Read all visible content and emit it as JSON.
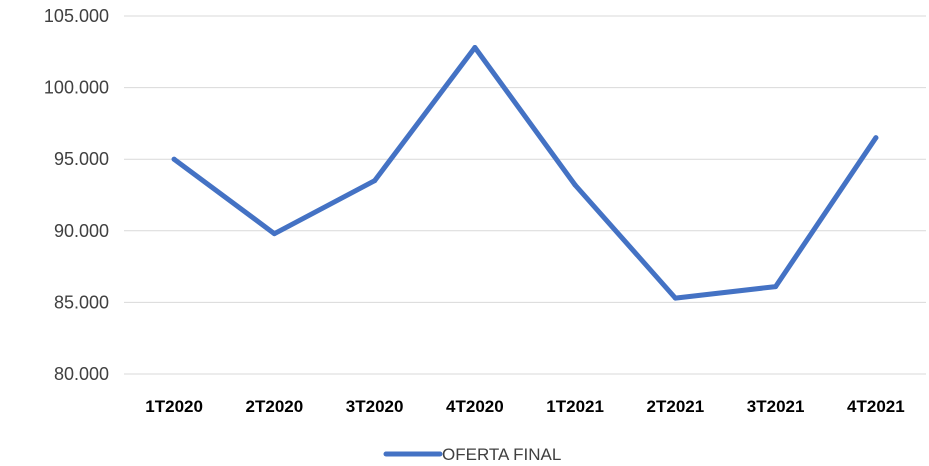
{
  "chart_data": {
    "type": "line",
    "title": "",
    "xlabel": "",
    "ylabel": "",
    "categories": [
      "1T2020",
      "2T2020",
      "3T2020",
      "4T2020",
      "1T2021",
      "2T2021",
      "3T2021",
      "4T2021"
    ],
    "series": [
      {
        "name": "OFERTA FINAL",
        "color": "#4472C4",
        "values": [
          95000,
          89800,
          93500,
          102800,
          93200,
          85300,
          86100,
          96500
        ]
      }
    ],
    "ylim": [
      80000,
      105000
    ],
    "yticks": [
      80000,
      85000,
      90000,
      95000,
      100000,
      105000
    ],
    "ytick_labels": [
      "80.000",
      "85.000",
      "90.000",
      "95.000",
      "100.000",
      "105.000"
    ],
    "grid": true,
    "legend_position": "bottom"
  }
}
